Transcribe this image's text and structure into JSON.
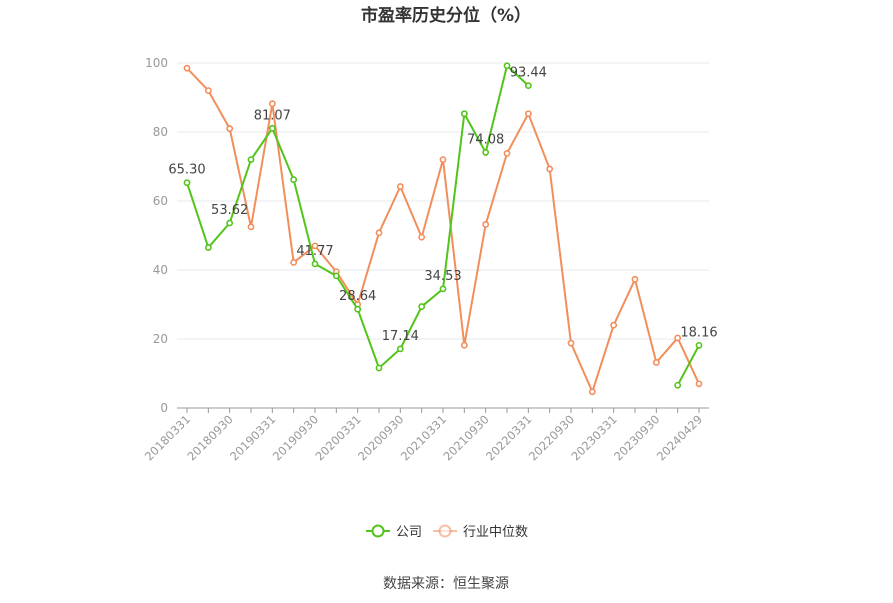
{
  "chart_data": {
    "type": "line",
    "title": "市盈率历史分位（%）",
    "ylim": [
      0,
      100
    ],
    "yticks": [
      0,
      20,
      40,
      60,
      80,
      100
    ],
    "x": [
      "20180331",
      "20180630",
      "20180930",
      "20181231",
      "20190331",
      "20190630",
      "20190930",
      "20191231",
      "20200331",
      "20200630",
      "20200930",
      "20201231",
      "20210331",
      "20210630",
      "20210930",
      "20211231",
      "20220331",
      "20220630",
      "20220930",
      "20221231",
      "20230331",
      "20230630",
      "20230930",
      "20231231",
      "20240429"
    ],
    "xtick_labels": [
      "20180331",
      "20180930",
      "20190331",
      "20190930",
      "20200331",
      "20200930",
      "20210331",
      "20210930",
      "20220331",
      "20220930",
      "20230331",
      "20230930",
      "20240429"
    ],
    "grid": "horizontal",
    "legend_position": "bottom",
    "series": [
      {
        "name": "公司",
        "color": "#52c41a",
        "values": [
          65.3,
          46.5,
          53.62,
          72.0,
          81.07,
          66.2,
          41.77,
          38.3,
          28.64,
          11.6,
          17.14,
          29.4,
          34.53,
          85.3,
          74.08,
          99.2,
          93.44,
          null,
          null,
          null,
          null,
          null,
          null,
          6.6,
          18.16
        ]
      },
      {
        "name": "行业中位数",
        "color": "#f28e5b",
        "values": [
          98.5,
          92.0,
          81.0,
          52.5,
          88.2,
          42.2,
          47.0,
          39.5,
          30.0,
          50.8,
          64.2,
          49.5,
          72.0,
          18.2,
          53.2,
          73.8,
          85.3,
          69.3,
          18.8,
          4.7,
          24.0,
          37.3,
          13.2,
          20.3,
          7.0
        ]
      }
    ],
    "data_labels": [
      {
        "series": 0,
        "index": 0,
        "text": "65.30"
      },
      {
        "series": 0,
        "index": 2,
        "text": "53.62"
      },
      {
        "series": 0,
        "index": 4,
        "text": "81.07"
      },
      {
        "series": 0,
        "index": 6,
        "text": "41.77"
      },
      {
        "series": 0,
        "index": 8,
        "text": "28.64"
      },
      {
        "series": 0,
        "index": 10,
        "text": "17.14"
      },
      {
        "series": 0,
        "index": 12,
        "text": "34.53"
      },
      {
        "series": 0,
        "index": 14,
        "text": "74.08"
      },
      {
        "series": 0,
        "index": 16,
        "text": "93.44"
      },
      {
        "series": 0,
        "index": 24,
        "text": "18.16"
      }
    ]
  },
  "legend": {
    "items": [
      {
        "label": "公司",
        "color": "#52c41a"
      },
      {
        "label": "行业中位数",
        "color": "#f28e5b"
      }
    ]
  },
  "source": "数据来源：恒生聚源"
}
